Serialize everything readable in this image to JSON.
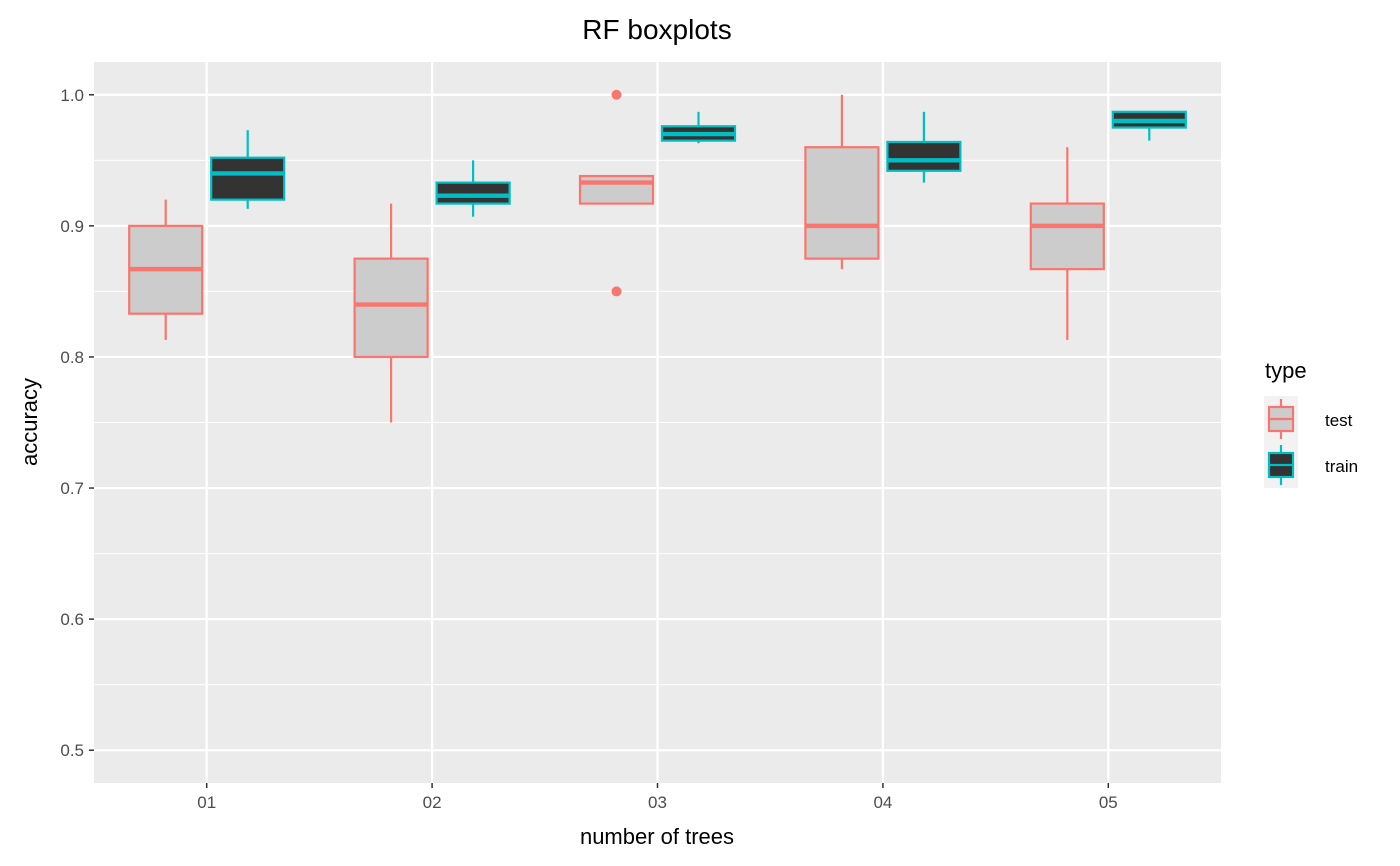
{
  "chart_data": {
    "type": "boxplot",
    "title": "RF boxplots",
    "xlabel": "number of trees",
    "ylabel": "accuracy",
    "categories": [
      "01",
      "02",
      "03",
      "04",
      "05"
    ],
    "ylim": [
      0.475,
      1.025
    ],
    "yticks": [
      "0.5",
      "0.6",
      "0.7",
      "0.8",
      "0.9",
      "1.0"
    ],
    "grid": true,
    "legend": {
      "title": "type",
      "position": "right",
      "entries": [
        "test",
        "train"
      ]
    },
    "series": [
      {
        "name": "test",
        "color": "#F8766D",
        "fill": "#CCCCCC",
        "boxes": [
          {
            "min": 0.813,
            "q1": 0.833,
            "median": 0.867,
            "q3": 0.9,
            "max": 0.92,
            "outliers": []
          },
          {
            "min": 0.75,
            "q1": 0.8,
            "median": 0.84,
            "q3": 0.875,
            "max": 0.917,
            "outliers": []
          },
          {
            "min": 0.917,
            "q1": 0.917,
            "median": 0.933,
            "q3": 0.938,
            "max": 0.938,
            "outliers": [
              1.0,
              0.85
            ]
          },
          {
            "min": 0.867,
            "q1": 0.875,
            "median": 0.9,
            "q3": 0.96,
            "max": 1.0,
            "outliers": []
          },
          {
            "min": 0.813,
            "q1": 0.867,
            "median": 0.9,
            "q3": 0.917,
            "max": 0.96,
            "outliers": []
          }
        ]
      },
      {
        "name": "train",
        "color": "#00BFC4",
        "fill": "#333333",
        "boxes": [
          {
            "min": 0.913,
            "q1": 0.92,
            "median": 0.94,
            "q3": 0.952,
            "max": 0.973,
            "outliers": []
          },
          {
            "min": 0.907,
            "q1": 0.917,
            "median": 0.923,
            "q3": 0.933,
            "max": 0.95,
            "outliers": []
          },
          {
            "min": 0.963,
            "q1": 0.965,
            "median": 0.97,
            "q3": 0.976,
            "max": 0.987,
            "outliers": []
          },
          {
            "min": 0.933,
            "q1": 0.942,
            "median": 0.95,
            "q3": 0.964,
            "max": 0.987,
            "outliers": []
          },
          {
            "min": 0.965,
            "q1": 0.975,
            "median": 0.98,
            "q3": 0.987,
            "max": 0.987,
            "outliers": []
          }
        ]
      }
    ]
  }
}
